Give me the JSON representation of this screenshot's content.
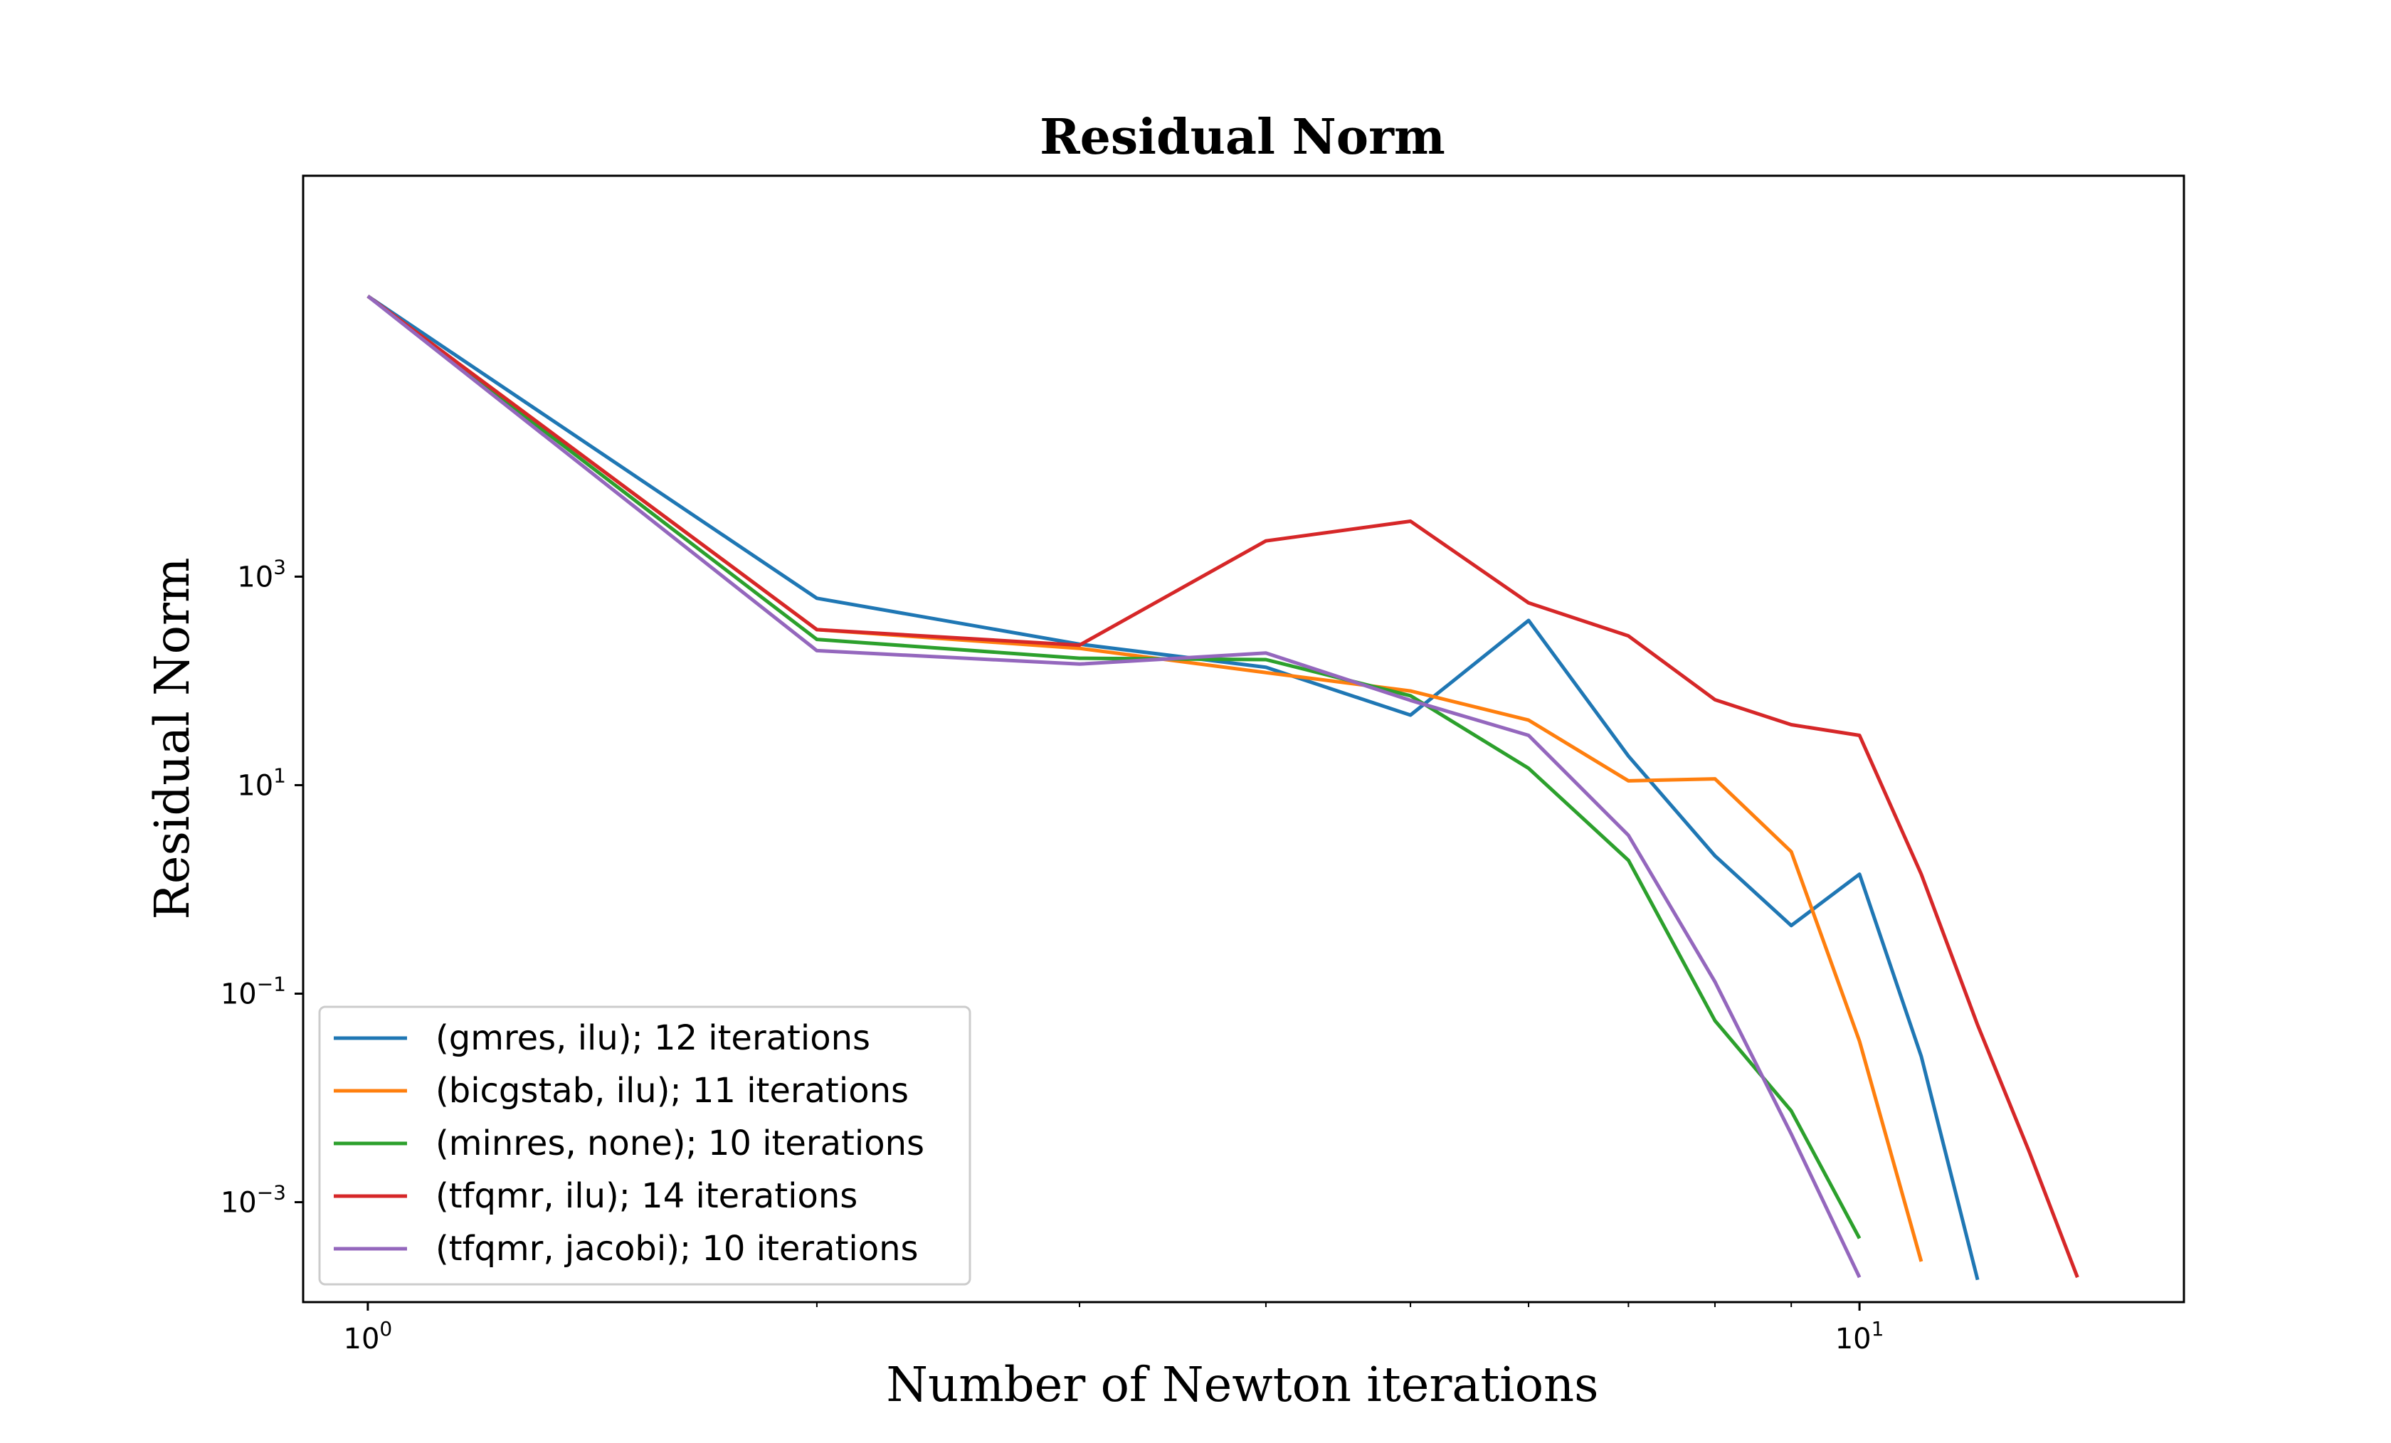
{
  "chart_data": {
    "type": "line",
    "title": "Residual Norm",
    "xlabel": "Number of Newton iterations",
    "ylabel": "Residual Norm",
    "xscale": "log",
    "yscale": "log",
    "xlim": [
      0.905,
      16.5
    ],
    "ylim": [
      0.00011,
      7000000
    ],
    "xticks": [
      {
        "value": 1,
        "base": "10",
        "exp": "0"
      },
      {
        "value": 10,
        "base": "10",
        "exp": "1"
      }
    ],
    "yticks": [
      {
        "value": 1000,
        "base": "10",
        "exp": "3"
      },
      {
        "value": 10,
        "base": "10",
        "exp": "1"
      },
      {
        "value": 0.1,
        "base": "10",
        "exp": "−1"
      },
      {
        "value": 0.001,
        "base": "10",
        "exp": "−3"
      }
    ],
    "grid": false,
    "legend_position": "lower-left",
    "series": [
      {
        "name": "(gmres, ilu); 12 iterations",
        "color": "#1f77b4",
        "x": [
          1,
          2,
          3,
          4,
          5,
          6,
          7,
          8,
          9,
          10,
          11,
          12
        ],
        "y": [
          490000,
          620,
          225,
          135,
          47,
          380,
          19,
          2.1,
          0.45,
          1.4,
          0.025,
          0.00018
        ]
      },
      {
        "name": "(bicgstab, ilu); 11 iterations",
        "color": "#ff7f0e",
        "x": [
          1,
          2,
          3,
          4,
          5,
          6,
          7,
          8,
          9,
          10,
          11
        ],
        "y": [
          490000,
          310,
          205,
          120,
          80,
          42,
          11,
          11.5,
          2.3,
          0.035,
          0.00027
        ]
      },
      {
        "name": "(minres, none); 10 iterations",
        "color": "#2ca02c",
        "x": [
          1,
          2,
          3,
          4,
          5,
          6,
          7,
          8,
          9,
          10
        ],
        "y": [
          490000,
          250,
          165,
          160,
          72,
          14.5,
          1.9,
          0.055,
          0.0075,
          0.00045
        ]
      },
      {
        "name": "(tfqmr, ilu); 14 iterations",
        "color": "#d62728",
        "x": [
          1,
          2,
          3,
          4,
          5,
          6,
          7,
          8,
          9,
          10,
          11,
          12,
          13,
          14
        ],
        "y": [
          490000,
          310,
          220,
          2200,
          3400,
          560,
          270,
          66,
          38,
          30,
          1.4,
          0.05,
          0.003,
          0.00019
        ]
      },
      {
        "name": "(tfqmr, jacobi); 10 iterations",
        "color": "#9467bd",
        "x": [
          1,
          2,
          3,
          4,
          5,
          6,
          7,
          8,
          9,
          10
        ],
        "y": [
          490000,
          195,
          145,
          185,
          65,
          30,
          3.3,
          0.13,
          0.0045,
          0.00019
        ]
      }
    ]
  }
}
